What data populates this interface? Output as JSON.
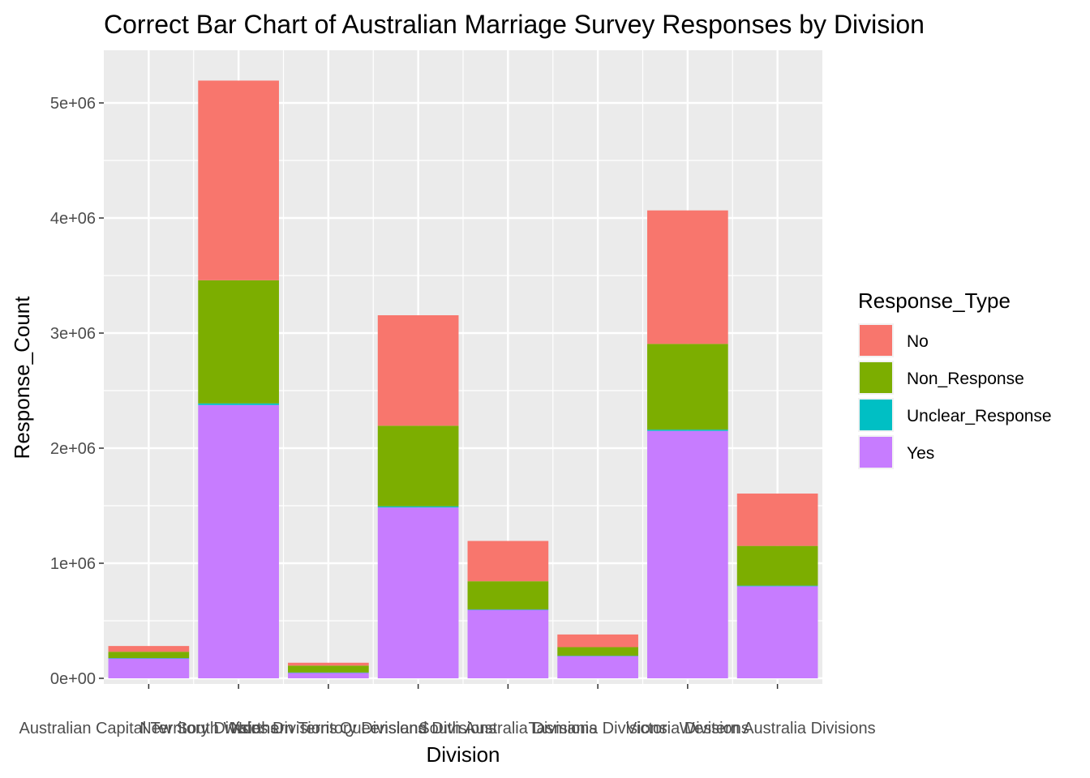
{
  "chart_data": {
    "type": "bar",
    "stacked": true,
    "title": "Correct Bar Chart of Australian Marriage Survey Responses by Division",
    "xlabel": "Division",
    "ylabel": "Response_Count",
    "ylim": [
      -200000,
      5400000
    ],
    "yticks": [
      0,
      1000000,
      2000000,
      3000000,
      4000000,
      5000000
    ],
    "ytick_labels": [
      "0e+00",
      "1e+06",
      "2e+06",
      "3e+06",
      "4e+06",
      "5e+06"
    ],
    "grid": true,
    "legend_position": "right",
    "legend_title": "Response_Type",
    "categories": [
      "Australian Capital Territory Divisions",
      "New South Wales Divisions",
      "Northern Territory Divisions",
      "Queensland Divisions",
      "South Australia Divisions",
      "Tasmania Divisions",
      "Victoria Divisions",
      "Western Australia Divisions"
    ],
    "series": [
      {
        "name": "No",
        "color": "#F8766D",
        "values": [
          50000,
          1735000,
          25000,
          960000,
          350000,
          110000,
          1160000,
          455000
        ]
      },
      {
        "name": "Non_Response",
        "color": "#7CAE00",
        "values": [
          55000,
          1070000,
          60000,
          700000,
          245000,
          75000,
          745000,
          345000
        ]
      },
      {
        "name": "Unclear_Response",
        "color": "#00BFC4",
        "values": [
          800,
          14000,
          500,
          10000,
          3700,
          1000,
          11000,
          5500
        ]
      },
      {
        "name": "Yes",
        "color": "#C77CFF",
        "values": [
          175000,
          2375000,
          50000,
          1485000,
          595000,
          195000,
          2150000,
          800000
        ]
      }
    ]
  }
}
